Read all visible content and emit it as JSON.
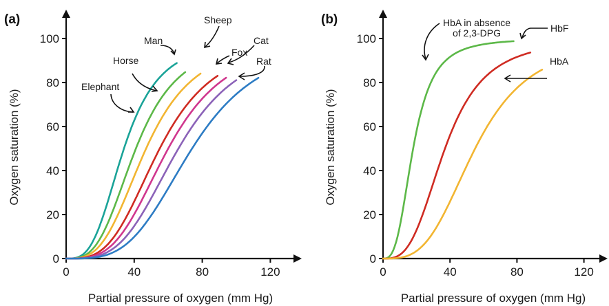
{
  "chart_data": [
    {
      "type": "line",
      "panel": "(a)",
      "title": "",
      "xlabel": "Partial pressure of oxygen (mm Hg)",
      "ylabel": "Oxygen saturation (%)",
      "xlim": [
        0,
        130
      ],
      "ylim": [
        0,
        108
      ],
      "xticks": [
        0,
        40,
        80,
        120
      ],
      "yticks": [
        0,
        20,
        40,
        60,
        80,
        100
      ],
      "grid": false,
      "series": [
        {
          "name": "Elephant",
          "color": "#1aa398",
          "p50": 34,
          "n": 3.2,
          "xmax": 65
        },
        {
          "name": "Horse",
          "color": "#5cb848",
          "p50": 41,
          "n": 3.2,
          "xmax": 70
        },
        {
          "name": "Man",
          "color": "#f2b531",
          "p50": 47,
          "n": 3.2,
          "xmax": 79
        },
        {
          "name": "Sheep",
          "color": "#cf2b22",
          "p50": 55,
          "n": 3.3,
          "xmax": 89
        },
        {
          "name": "Fox",
          "color": "#d0378e",
          "p50": 60,
          "n": 3.4,
          "xmax": 94
        },
        {
          "name": "Cat",
          "color": "#8b62b8",
          "p50": 66,
          "n": 3.5,
          "xmax": 100
        },
        {
          "name": "Rat",
          "color": "#2d7cc4",
          "p50": 74,
          "n": 3.6,
          "xmax": 113
        }
      ]
    },
    {
      "type": "line",
      "panel": "(b)",
      "title": "",
      "xlabel": "Partial pressure of oxygen (mm Hg)",
      "ylabel": "Oxygen saturation (%)",
      "xlim": [
        0,
        130
      ],
      "ylim": [
        0,
        108
      ],
      "xticks": [
        0,
        40,
        80,
        120
      ],
      "yticks": [
        0,
        20,
        40,
        60,
        80,
        100
      ],
      "grid": false,
      "series": [
        {
          "name": "HbA in absence of 2,3-DPG",
          "name_lines": [
            "HbA in absence",
            "of 2,3-DPG"
          ],
          "color": "#5cb848",
          "p50": 18,
          "n": 3.0,
          "xmax": 78
        },
        {
          "name": "HbF",
          "color": "#cf2b22",
          "p50": 37,
          "n": 3.1,
          "xmax": 88
        },
        {
          "name": "HbA",
          "color": "#f2b531",
          "p50": 55,
          "n": 3.3,
          "xmax": 95
        }
      ]
    }
  ]
}
